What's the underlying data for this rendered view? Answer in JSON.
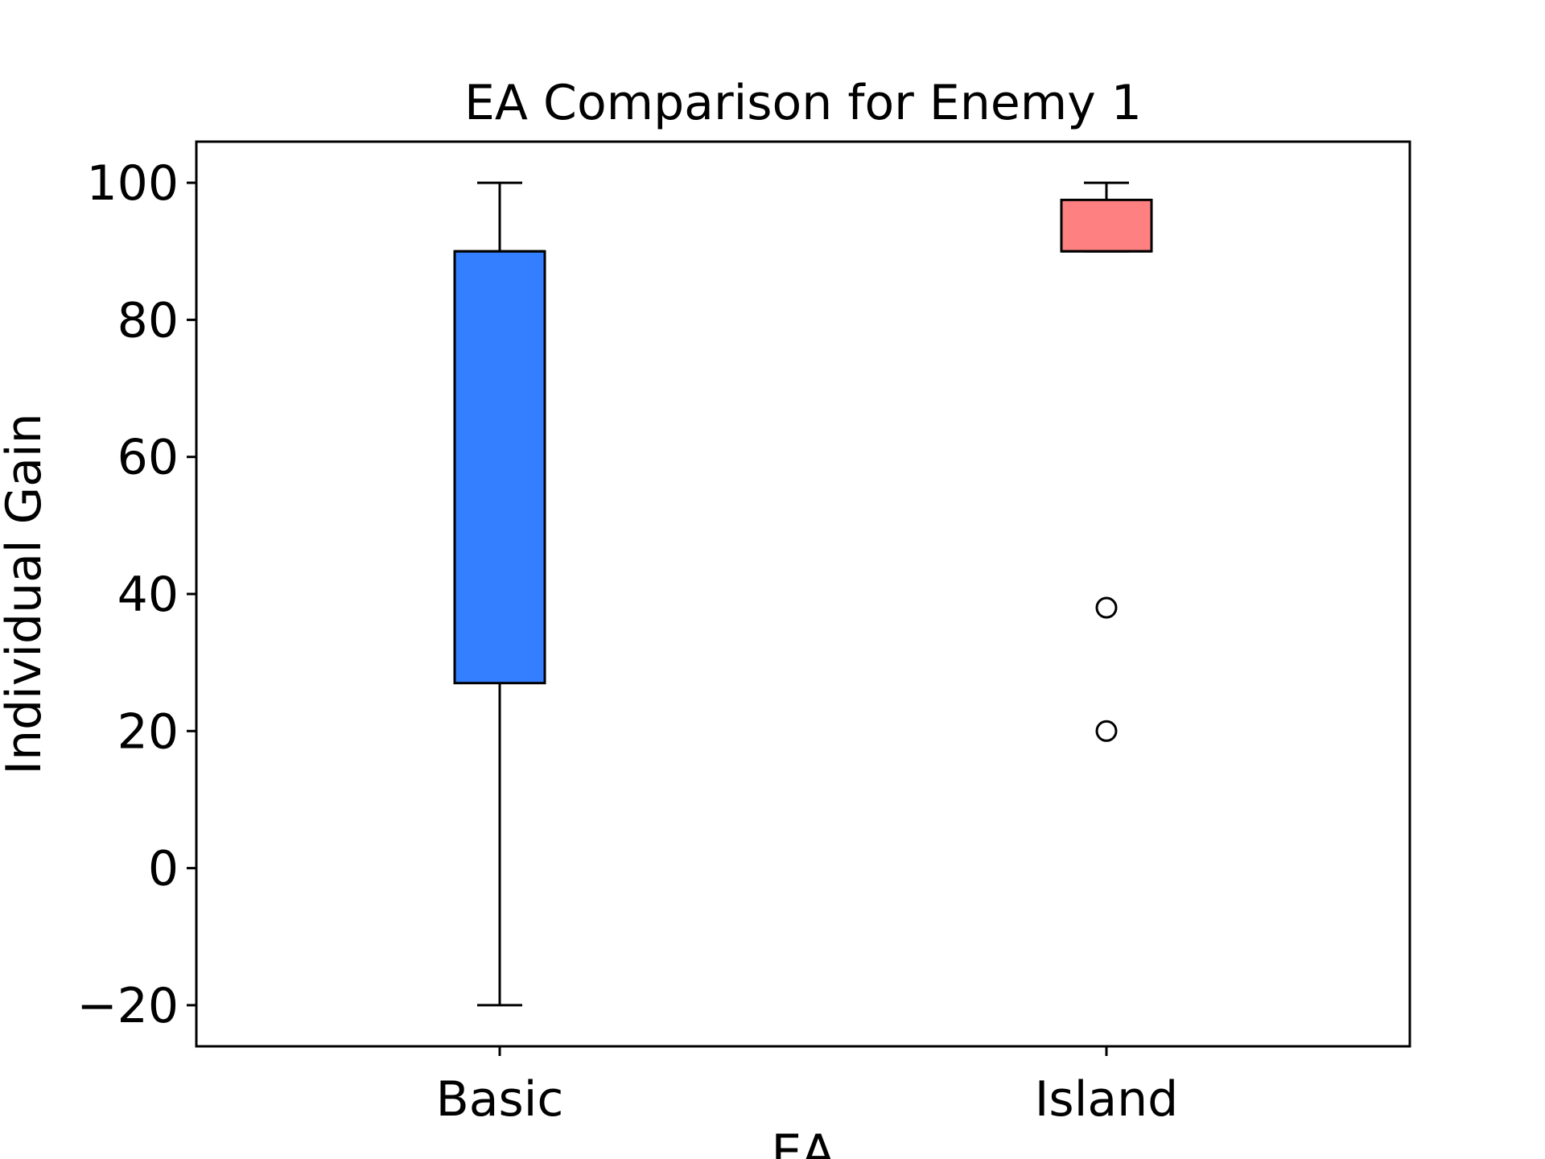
{
  "chart_data": {
    "type": "boxplot",
    "title": "EA Comparison for Enemy 1",
    "xlabel": "EA",
    "ylabel": "Individual Gain",
    "categories": [
      "Basic",
      "Island"
    ],
    "ylim": [
      -26,
      106
    ],
    "yticks": [
      -20,
      0,
      20,
      40,
      60,
      80,
      100
    ],
    "ytick_labels": [
      "−20",
      "0",
      "20",
      "40",
      "60",
      "80",
      "100"
    ],
    "grid": false,
    "legend": "none",
    "boxes": [
      {
        "category": "Basic",
        "whisker_low": -20,
        "q1": 27,
        "median": 90,
        "q3": 90,
        "whisker_high": 100,
        "outliers": [],
        "color": "#337fff"
      },
      {
        "category": "Island",
        "whisker_low": 90,
        "q1": 90,
        "median": 90,
        "q3": 97.5,
        "whisker_high": 100,
        "outliers": [
          38,
          20
        ],
        "color": "#ff8080"
      }
    ]
  }
}
